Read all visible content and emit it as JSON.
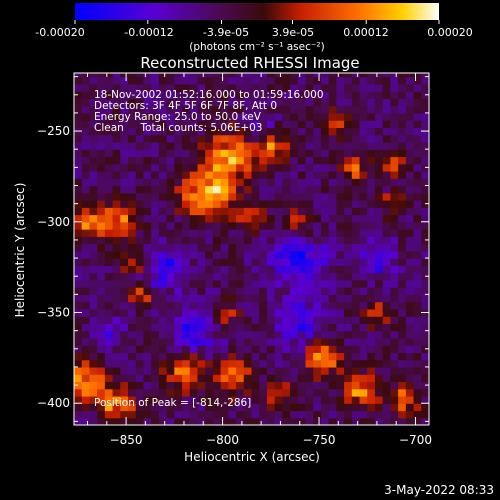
{
  "colorbar": {
    "tick_labels": [
      "-0.00020",
      "-0.00012",
      "-3.9e-05",
      "3.9e-05",
      "0.00012",
      "0.00020"
    ],
    "range": [
      -0.0002,
      0.0002
    ],
    "unit_label": "(photons cm⁻² s⁻¹ asec⁻²)"
  },
  "chart_data": {
    "type": "heatmap",
    "title": "Reconstructed RHESSI Image",
    "xlabel": "Heliocentric X (arcsec)",
    "ylabel": "Heliocentric Y (arcsec)",
    "xlim": [
      -877,
      -693
    ],
    "ylim": [
      -412,
      -218
    ],
    "x_ticks": [
      -850,
      -800,
      -750,
      -700
    ],
    "y_ticks": [
      -250,
      -300,
      -350,
      -400
    ],
    "x_tick_labels": [
      "−850",
      "−800",
      "−750",
      "−700"
    ],
    "y_tick_labels": [
      "−250",
      "−300",
      "−350",
      "−400"
    ],
    "annotations": [
      "18-Nov-2002 01:52:16.000 to 01:59:16.000",
      "Detectors: 3F 4F 5F 6F 7F 8F, Att 0",
      "Energy Range: 25.0 to 50.0 keV",
      "Clean     Total counts: 5.06E+03"
    ],
    "peak_label": "Position of Peak = [-814,-286]",
    "peak": [
      -814,
      -286
    ],
    "grid": false,
    "colormap": [
      "#0000ff",
      "#6a00c8",
      "#7a1a1a",
      "#ff3a00",
      "#ffb000",
      "#ffffff"
    ],
    "hot_regions": [
      {
        "x": -807,
        "y": -283,
        "r": 14,
        "v": 0.0002
      },
      {
        "x": -795,
        "y": -262,
        "r": 12,
        "v": 0.00017
      },
      {
        "x": -775,
        "y": -258,
        "r": 9,
        "v": 0.00013
      },
      {
        "x": -855,
        "y": -300,
        "r": 10,
        "v": 0.00015
      },
      {
        "x": -870,
        "y": -300,
        "r": 8,
        "v": 0.00013
      },
      {
        "x": -845,
        "y": -322,
        "r": 7,
        "v": 0.0001
      },
      {
        "x": -785,
        "y": -298,
        "r": 8,
        "v": 0.00011
      },
      {
        "x": -760,
        "y": -300,
        "r": 7,
        "v": 0.0001
      },
      {
        "x": -732,
        "y": -270,
        "r": 7,
        "v": 0.00012
      },
      {
        "x": -712,
        "y": -268,
        "r": 6,
        "v": 0.00011
      },
      {
        "x": -712,
        "y": -290,
        "r": 6,
        "v": 0.0001
      },
      {
        "x": -842,
        "y": -340,
        "r": 6,
        "v": 0.00012
      },
      {
        "x": -798,
        "y": -350,
        "r": 6,
        "v": 0.0001
      },
      {
        "x": -720,
        "y": -350,
        "r": 7,
        "v": 0.0001
      },
      {
        "x": -870,
        "y": -388,
        "r": 10,
        "v": 0.00017
      },
      {
        "x": -855,
        "y": -400,
        "r": 9,
        "v": 0.00016
      },
      {
        "x": -820,
        "y": -382,
        "r": 10,
        "v": 0.00014
      },
      {
        "x": -795,
        "y": -385,
        "r": 10,
        "v": 0.00013
      },
      {
        "x": -770,
        "y": -395,
        "r": 8,
        "v": 0.0001
      },
      {
        "x": -748,
        "y": -375,
        "r": 9,
        "v": 0.00016
      },
      {
        "x": -728,
        "y": -392,
        "r": 9,
        "v": 0.00017
      },
      {
        "x": -705,
        "y": -398,
        "r": 7,
        "v": 0.00015
      },
      {
        "x": -740,
        "y": -245,
        "r": 7,
        "v": 0.0001
      }
    ],
    "cold_regions": [
      {
        "x": -760,
        "y": -320,
        "r": 14,
        "v": -0.00014
      },
      {
        "x": -830,
        "y": -325,
        "r": 12,
        "v": -0.00012
      },
      {
        "x": -815,
        "y": -360,
        "r": 12,
        "v": -0.00012
      },
      {
        "x": -760,
        "y": -355,
        "r": 12,
        "v": -0.00012
      },
      {
        "x": -720,
        "y": -320,
        "r": 10,
        "v": -0.0001
      },
      {
        "x": -860,
        "y": -360,
        "r": 8,
        "v": -0.0001
      },
      {
        "x": -780,
        "y": -248,
        "r": 8,
        "v": -9e-05
      }
    ]
  },
  "footer": {
    "date": "3-May-2022 08:33"
  }
}
